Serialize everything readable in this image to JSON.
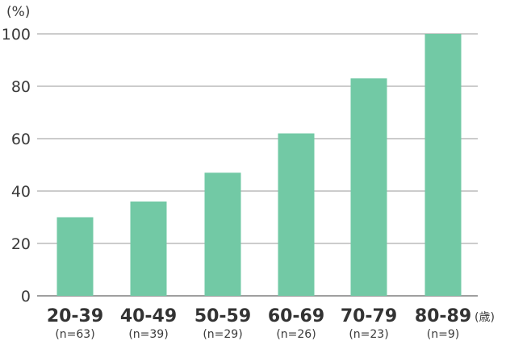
{
  "chart_data": {
    "type": "bar",
    "y_unit_label": "(%)",
    "x_unit_label": "(歳)",
    "categories": [
      "20-39",
      "40-49",
      "50-59",
      "60-69",
      "70-79",
      "80-89"
    ],
    "sample_sizes": [
      "(n=63)",
      "(n=39)",
      "(n=29)",
      "(n=26)",
      "(n=23)",
      "(n=9)"
    ],
    "values": [
      30,
      36,
      47,
      62,
      83,
      100
    ],
    "ylim": [
      0,
      100
    ],
    "yticks": [
      0,
      20,
      40,
      60,
      80,
      100
    ],
    "grid": true,
    "bar_color": "#72c9a5"
  }
}
